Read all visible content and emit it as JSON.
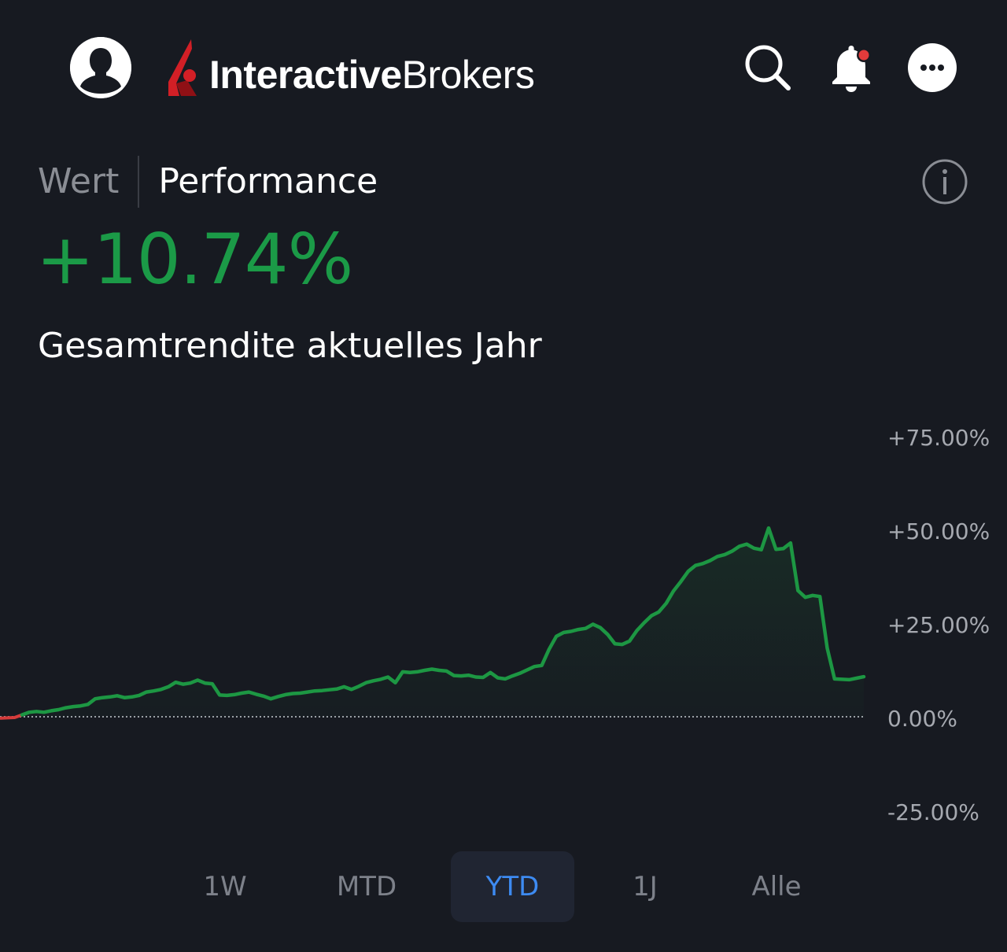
{
  "header": {
    "logo_text_bold": "Interactive",
    "logo_text_regular": "Brokers",
    "brand_color": "#d21f26",
    "icons": [
      "user-icon",
      "search-icon",
      "bell-icon",
      "more-icon"
    ],
    "notification_dot_color": "#e23b3b"
  },
  "tabs": {
    "items": [
      "Wert",
      "Performance"
    ],
    "active": "Performance"
  },
  "summary": {
    "value": "+10.74%",
    "label": "Gesamtrendite aktuelles Jahr",
    "value_color": "#1b9a47"
  },
  "chart_data": {
    "type": "line",
    "title": "",
    "xlabel": "",
    "ylabel": "",
    "ylim": [
      -25,
      75
    ],
    "y_ticks": [
      "+75.00%",
      "+50.00%",
      "+25.00%",
      "0.00%",
      "-25.00%"
    ],
    "y_tick_values": [
      75,
      50,
      25,
      0,
      -25
    ],
    "baseline": 0,
    "grid": false,
    "line_color": "#1d9743",
    "negative_color": "#d63b3b",
    "series": [
      {
        "values": [
          -0.4,
          -0.3,
          -0.2,
          0.5,
          1.2,
          1.4,
          1.2,
          1.6,
          1.9,
          2.4,
          2.7,
          2.9,
          3.3,
          4.8,
          5.1,
          5.3,
          5.6,
          5.1,
          5.3,
          5.7,
          6.6,
          6.9,
          7.3,
          8.0,
          9.2,
          8.7,
          9.0,
          9.8,
          9.0,
          8.8,
          5.8,
          5.7,
          5.9,
          6.3,
          6.6,
          6.0,
          5.5,
          4.8,
          5.4,
          5.9,
          6.2,
          6.3,
          6.6,
          6.9,
          7.0,
          7.2,
          7.4,
          8.0,
          7.3,
          8.1,
          9.1,
          9.6,
          10.0,
          10.6,
          9.1,
          12.0,
          11.8,
          12.0,
          12.4,
          12.7,
          12.4,
          12.2,
          11.0,
          10.9,
          11.1,
          10.6,
          10.5,
          11.8,
          10.4,
          10.1,
          10.9,
          11.6,
          12.5,
          13.4,
          13.7,
          18.0,
          21.5,
          22.5,
          22.8,
          23.3,
          23.6,
          24.7,
          23.8,
          22.0,
          19.5,
          19.3,
          20.2,
          23.0,
          25.1,
          27.0,
          28.0,
          30.3,
          33.6,
          36.1,
          38.8,
          40.4,
          40.9,
          41.7,
          42.8,
          43.3,
          44.2,
          45.5,
          46.1,
          45.0,
          44.6,
          50.4,
          44.7,
          44.9,
          46.4,
          33.7,
          31.9,
          32.4,
          32.1,
          18.3,
          10.1,
          10.0,
          9.9,
          10.3,
          10.7
        ]
      }
    ]
  },
  "periods": {
    "items": [
      "1W",
      "MTD",
      "YTD",
      "1J",
      "Alle"
    ],
    "active": "YTD"
  }
}
